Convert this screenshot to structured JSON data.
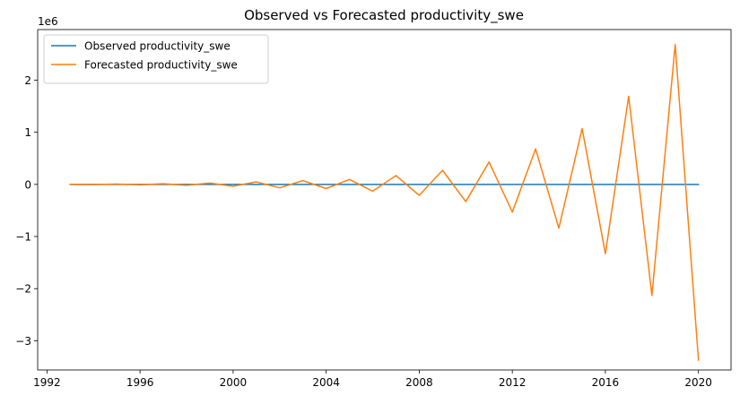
{
  "chart_data": {
    "type": "line",
    "title": "Observed vs Forecasted productivity_swe",
    "xlabel": "",
    "ylabel": "",
    "y_offset_label": "1e6",
    "xlim": [
      1991.6,
      2021.4
    ],
    "ylim": [
      -3.56,
      2.97
    ],
    "x_ticks": [
      1992,
      1996,
      2000,
      2004,
      2008,
      2012,
      2016,
      2020
    ],
    "x_tick_labels": [
      "1992",
      "1996",
      "2000",
      "2004",
      "2008",
      "2012",
      "2016",
      "2020"
    ],
    "y_ticks": [
      -3,
      -2,
      -1,
      0,
      1,
      2
    ],
    "y_tick_labels": [
      "−3",
      "−2",
      "−1",
      "0",
      "1",
      "2"
    ],
    "grid": false,
    "legend_position": "top-left",
    "x": [
      1993,
      1994,
      1995,
      1996,
      1997,
      1998,
      1999,
      2000,
      2001,
      2002,
      2003,
      2004,
      2005,
      2006,
      2007,
      2008,
      2009,
      2010,
      2011,
      2012,
      2013,
      2014,
      2015,
      2016,
      2017,
      2018,
      2019,
      2020
    ],
    "series": [
      {
        "name": "Observed productivity_swe",
        "color": "#1f77b4",
        "values": [
          3.5e-05,
          3.6e-05,
          3.7e-05,
          3.8e-05,
          3.9e-05,
          4e-05,
          4.1e-05,
          4.2e-05,
          4.3e-05,
          4.4e-05,
          4.5e-05,
          4.6e-05,
          4.7e-05,
          4.8e-05,
          4.9e-05,
          5e-05,
          5.1e-05,
          5.2e-05,
          5.3e-05,
          5.4e-05,
          5.5e-05,
          5.6e-05,
          5.7e-05,
          5.8e-05,
          5.9e-05,
          6e-05,
          6.1e-05,
          6.2e-05
        ]
      },
      {
        "name": "Forecasted productivity_swe",
        "color": "#ff7f0e",
        "values": [
          0.0,
          -0.004,
          0.006,
          -0.009,
          0.013,
          -0.018,
          0.026,
          -0.035,
          0.048,
          -0.066,
          0.072,
          -0.08,
          0.095,
          -0.13,
          0.17,
          -0.21,
          0.27,
          -0.33,
          0.43,
          -0.53,
          0.68,
          -0.84,
          1.07,
          -1.33,
          1.69,
          -2.13,
          2.68,
          -3.37
        ]
      }
    ]
  }
}
